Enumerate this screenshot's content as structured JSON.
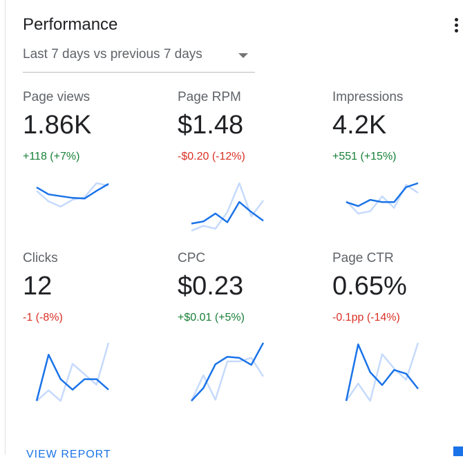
{
  "card": {
    "title": "Performance",
    "date_range": "Last 7 days vs previous 7 days",
    "footer_link": "VIEW REPORT"
  },
  "colors": {
    "current_line": "#1a73e8",
    "previous_line": "#c6dafc",
    "positive": "#188038",
    "negative": "#d93025"
  },
  "icons": {
    "menu": "more-vert-icon",
    "dropdown": "dropdown-caret-icon"
  },
  "metrics": [
    {
      "name": "Page views",
      "value": "1.86K",
      "change": "+118 (+7%)",
      "trend": "positive",
      "sparkline_current": [
        6,
        4,
        3.5,
        3,
        2.8,
        5,
        7
      ],
      "sparkline_previous": [
        5,
        2,
        0.5,
        2.5,
        3.2,
        7.2,
        6.5
      ]
    },
    {
      "name": "Page RPM",
      "value": "$1.48",
      "change": "-$0.20 (-12%)",
      "trend": "negative",
      "sparkline_current": [
        1.2,
        1.5,
        2.6,
        1.4,
        4.2,
        2.8,
        1.6
      ],
      "sparkline_previous": [
        0.2,
        0.9,
        0.5,
        2.8,
        6.8,
        2.2,
        4.4
      ]
    },
    {
      "name": "Impressions",
      "value": "4.2K",
      "change": "+551 (+15%)",
      "trend": "positive",
      "sparkline_current": [
        3.2,
        2.5,
        3.6,
        3.2,
        3.2,
        5.8,
        6.5
      ],
      "sparkline_previous": [
        3.4,
        1.2,
        1.6,
        4.2,
        2.2,
        6.2,
        4.8
      ]
    },
    {
      "name": "Clicks",
      "value": "12",
      "change": "-1 (-8%)",
      "trend": "negative",
      "sparkline_current": [
        0,
        6.6,
        3.1,
        1.6,
        3.1,
        3.1,
        1.6
      ],
      "sparkline_previous": [
        0,
        1.5,
        0,
        5.3,
        3.8,
        2.3,
        8.3
      ]
    },
    {
      "name": "CPC",
      "value": "$0.23",
      "change": "+$0.01 (+5%)",
      "trend": "positive",
      "sparkline_current": [
        0,
        2.2,
        6.3,
        7.6,
        7.4,
        6.2,
        10
      ],
      "sparkline_previous": [
        0,
        4.4,
        0.2,
        6.8,
        6.8,
        7.4,
        4.2
      ]
    },
    {
      "name": "Page CTR",
      "value": "0.65%",
      "change": "-0.1pp (-14%)",
      "trend": "negative",
      "sparkline_current": [
        0,
        7.5,
        3.8,
        2.1,
        4.1,
        3.6,
        1.6
      ],
      "sparkline_previous": [
        0,
        2.3,
        0,
        6.2,
        4.3,
        2.8,
        7.7
      ]
    }
  ]
}
